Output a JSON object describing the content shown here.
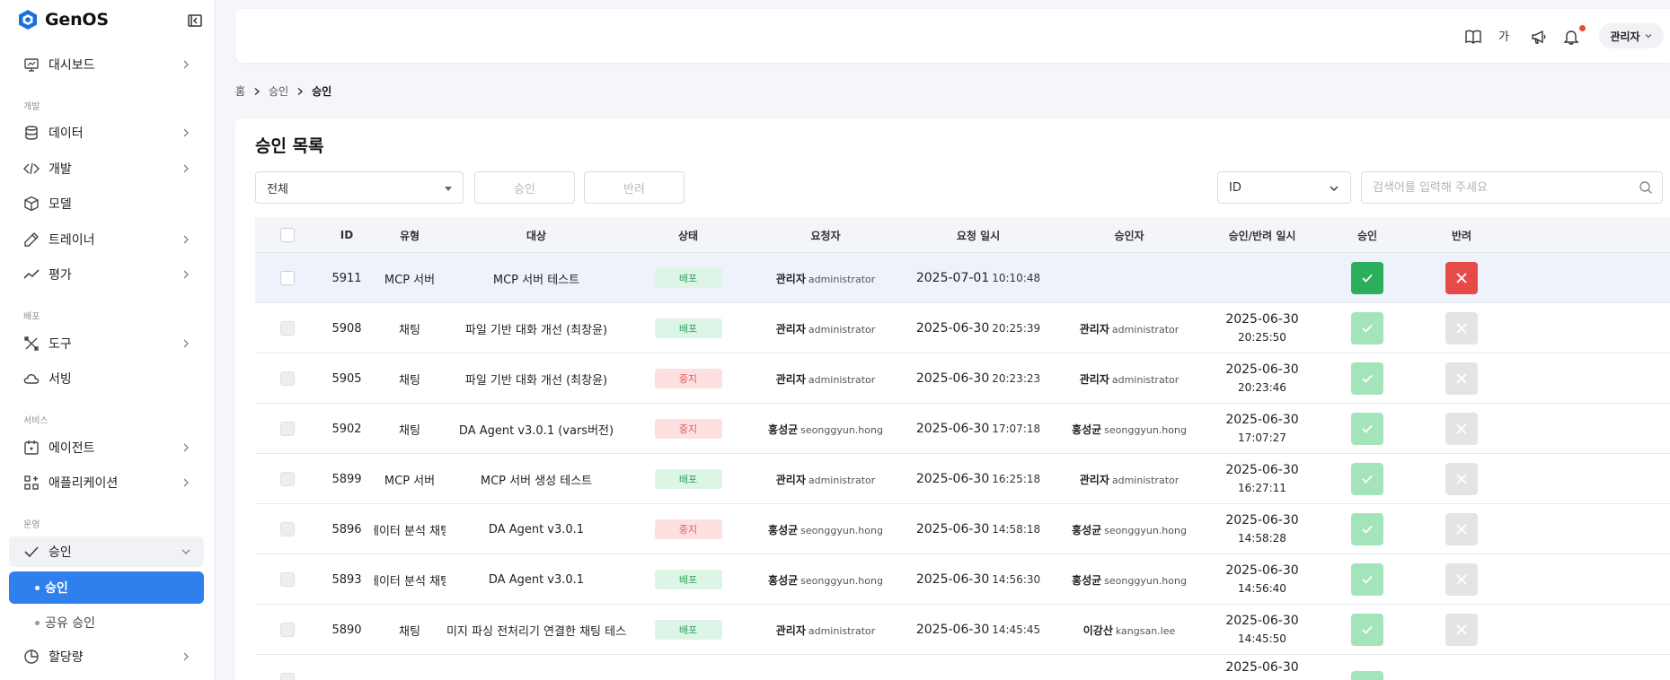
{
  "app": {
    "name": "GenOS"
  },
  "sidebar": {
    "items": [
      {
        "label": "대시보드",
        "icon": "monitor-icon"
      },
      {
        "label": "데이터",
        "icon": "database-icon"
      },
      {
        "label": "개발",
        "icon": "code-icon"
      },
      {
        "label": "모델",
        "icon": "cube-icon"
      },
      {
        "label": "트레이너",
        "icon": "pencil-icon"
      },
      {
        "label": "평가",
        "icon": "trend-icon"
      },
      {
        "label": "도구",
        "icon": "tools-icon"
      },
      {
        "label": "서빙",
        "icon": "cloud-icon"
      },
      {
        "label": "에이전트",
        "icon": "calendar-icon"
      },
      {
        "label": "애플리케이션",
        "icon": "apps-icon"
      },
      {
        "label": "승인",
        "icon": "check-icon"
      },
      {
        "label": "할당량",
        "icon": "pie-icon"
      }
    ],
    "sections": [
      "개발",
      "배포",
      "서비스",
      "운영"
    ],
    "sub_items": [
      {
        "label": "승인",
        "active": true
      },
      {
        "label": "공유 승인",
        "active": false
      }
    ]
  },
  "header": {
    "lang": "가",
    "user": "관리자"
  },
  "breadcrumb": {
    "home": "홈",
    "parent": "승인",
    "current": "승인"
  },
  "main": {
    "title": "승인 목록",
    "filter_value": "전체",
    "approve_label": "승인",
    "reject_label": "반려",
    "search_field": "ID",
    "search_placeholder": "검색어를 입력해 주세요"
  },
  "table": {
    "headers": {
      "id": "ID",
      "type": "유형",
      "target": "대상",
      "status": "상태",
      "requester": "요청자",
      "requested_at": "요청 일시",
      "approver": "승인자",
      "decided_at": "승인/반려 일시",
      "approve": "승인",
      "reject": "반려"
    },
    "rows": [
      {
        "id": "5911",
        "type": "MCP 서버",
        "target": "MCP 서버 테스트",
        "status": "배포",
        "req_name": "관리자",
        "req_id": "administrator",
        "req_date": "2025-07-01",
        "req_time": "10:10:48",
        "appr_name": "",
        "appr_id": "",
        "dec_date": "",
        "dec_time": ""
      },
      {
        "id": "5908",
        "type": "채팅",
        "target": "파일 기반 대화 개선 (최창윤)",
        "status": "배포",
        "req_name": "관리자",
        "req_id": "administrator",
        "req_date": "2025-06-30",
        "req_time": "20:25:39",
        "appr_name": "관리자",
        "appr_id": "administrator",
        "dec_date": "2025-06-30",
        "dec_time": "20:25:50"
      },
      {
        "id": "5905",
        "type": "채팅",
        "target": "파일 기반 대화 개선 (최창윤)",
        "status": "중지",
        "req_name": "관리자",
        "req_id": "administrator",
        "req_date": "2025-06-30",
        "req_time": "20:23:23",
        "appr_name": "관리자",
        "appr_id": "administrator",
        "dec_date": "2025-06-30",
        "dec_time": "20:23:46"
      },
      {
        "id": "5902",
        "type": "채팅",
        "target": "DA Agent v3.0.1 (vars버전)",
        "status": "중지",
        "req_name": "홍성균",
        "req_id": "seonggyun.hong",
        "req_date": "2025-06-30",
        "req_time": "17:07:18",
        "appr_name": "홍성균",
        "appr_id": "seonggyun.hong",
        "dec_date": "2025-06-30",
        "dec_time": "17:07:27"
      },
      {
        "id": "5899",
        "type": "MCP 서버",
        "target": "MCP 서버 생성 테스트",
        "status": "배포",
        "req_name": "관리자",
        "req_id": "administrator",
        "req_date": "2025-06-30",
        "req_time": "16:25:18",
        "appr_name": "관리자",
        "appr_id": "administrator",
        "dec_date": "2025-06-30",
        "dec_time": "16:27:11"
      },
      {
        "id": "5896",
        "type": "데이터 분석 채팅",
        "target": "DA Agent v3.0.1",
        "status": "중지",
        "req_name": "홍성균",
        "req_id": "seonggyun.hong",
        "req_date": "2025-06-30",
        "req_time": "14:58:18",
        "appr_name": "홍성균",
        "appr_id": "seonggyun.hong",
        "dec_date": "2025-06-30",
        "dec_time": "14:58:28"
      },
      {
        "id": "5893",
        "type": "데이터 분석 채팅",
        "target": "DA Agent v3.0.1",
        "status": "배포",
        "req_name": "홍성균",
        "req_id": "seonggyun.hong",
        "req_date": "2025-06-30",
        "req_time": "14:56:30",
        "appr_name": "홍성균",
        "appr_id": "seonggyun.hong",
        "dec_date": "2025-06-30",
        "dec_time": "14:56:40"
      },
      {
        "id": "5890",
        "type": "채팅",
        "target": "이미지 파싱 전처리기 연결한 채팅 테스트",
        "status": "배포",
        "req_name": "관리자",
        "req_id": "administrator",
        "req_date": "2025-06-30",
        "req_time": "14:45:45",
        "appr_name": "이강산",
        "appr_id": "kangsan.lee",
        "dec_date": "2025-06-30",
        "dec_time": "14:45:50"
      }
    ],
    "partial_row_date": "2025-06-30"
  },
  "colors": {
    "accent": "#2f80ed",
    "approve": "#2cae5c",
    "reject": "#e84a4a"
  }
}
